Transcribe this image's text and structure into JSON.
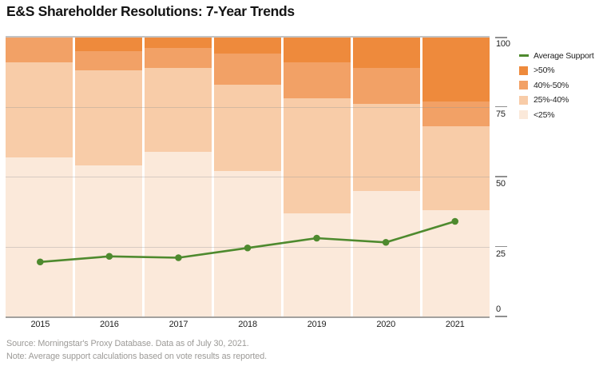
{
  "title": "E&S Shareholder Resolutions: 7-Year Trends",
  "footer": {
    "source": "Source: Morningstar's Proxy Database. Data as of July 30, 2021.",
    "note": "Note: Average support calculations based on vote results as reported."
  },
  "colors": {
    "gt50": "#ee8a3c",
    "r40_50": "#f2a166",
    "r25_40": "#f8cca8",
    "lt25": "#fbe9da",
    "line": "#4e8a2e",
    "grid": "#c9c7c4",
    "tick": "#8f8f8f"
  },
  "legend": {
    "items": [
      {
        "label": "Average Support",
        "swatch": "line",
        "shape": "dash"
      },
      {
        "label": ">50%",
        "swatch": "gt50",
        "shape": "square"
      },
      {
        "label": "40%-50%",
        "swatch": "r40_50",
        "shape": "square"
      },
      {
        "label": "25%-40%",
        "swatch": "r25_40",
        "shape": "square"
      },
      {
        "label": "<25%",
        "swatch": "lt25",
        "shape": "square"
      }
    ]
  },
  "y_axis": {
    "ticks": [
      100,
      75,
      50,
      25,
      0
    ]
  },
  "chart_data": {
    "type": "bar",
    "subtype": "stacked-100-percent-with-line-overlay",
    "title": "E&S Shareholder Resolutions: 7-Year Trends",
    "categories": [
      "2015",
      "2016",
      "2017",
      "2018",
      "2019",
      "2020",
      "2021"
    ],
    "series": [
      {
        "name": ">50%",
        "color": "gt50",
        "values": [
          0,
          5,
          4,
          6,
          9,
          11,
          23
        ]
      },
      {
        "name": "40%-50%",
        "color": "r40_50",
        "values": [
          9,
          7,
          7,
          11,
          13,
          13,
          9
        ]
      },
      {
        "name": "25%-40%",
        "color": "r25_40",
        "values": [
          34,
          34,
          30,
          31,
          41,
          31,
          30
        ]
      },
      {
        "name": "<25%",
        "color": "lt25",
        "values": [
          57,
          54,
          59,
          52,
          37,
          45,
          38
        ]
      }
    ],
    "line_series": {
      "name": "Average Support",
      "color": "line",
      "values": [
        19.5,
        21.5,
        21,
        24.5,
        28,
        26.5,
        34
      ]
    },
    "xlabel": "",
    "ylabel": "",
    "ylim": [
      0,
      100
    ],
    "grid": true,
    "gridlines_at": [
      25,
      50,
      75
    ],
    "legend_position": "right"
  }
}
